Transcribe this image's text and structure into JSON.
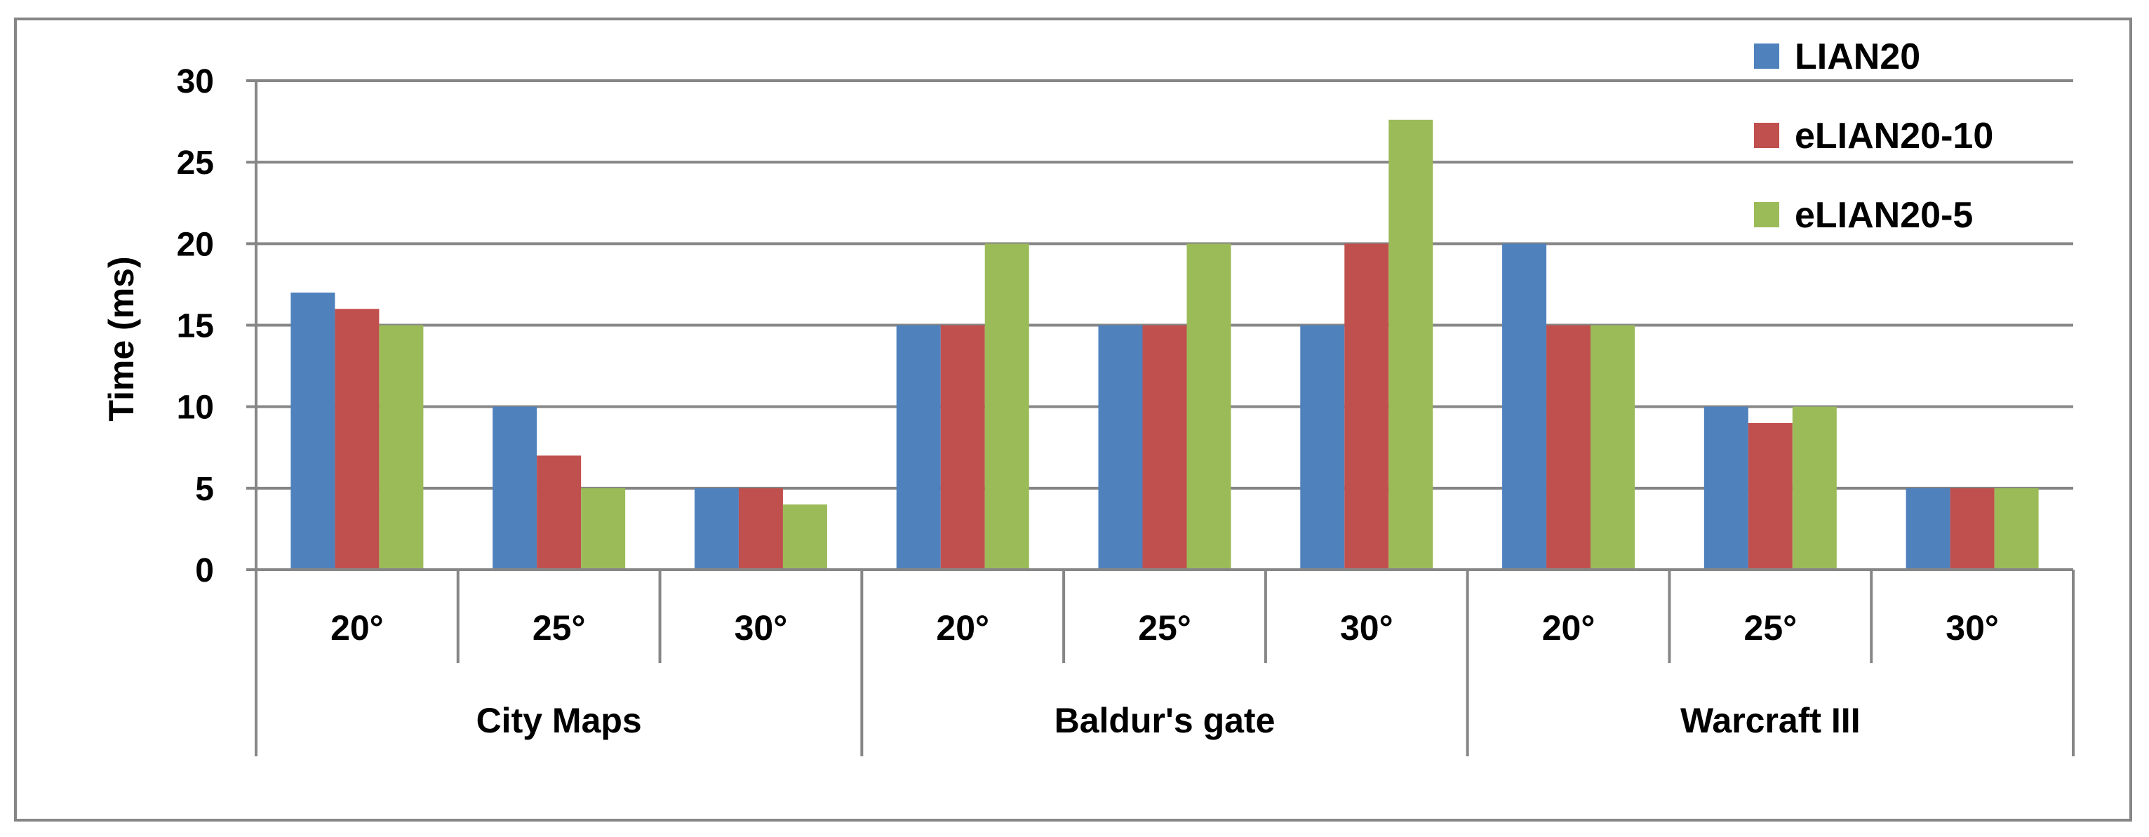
{
  "chart_data": {
    "type": "bar",
    "ylabel": "Time (ms)",
    "ylim": [
      0,
      30
    ],
    "yticks": [
      0,
      5,
      10,
      15,
      20,
      25,
      30
    ],
    "grid": true,
    "legend_position": "top-right",
    "groups": [
      {
        "name": "City Maps",
        "categories": [
          "20°",
          "25°",
          "30°"
        ]
      },
      {
        "name": "Baldur's gate",
        "categories": [
          "20°",
          "25°",
          "30°"
        ]
      },
      {
        "name": "Warcraft III",
        "categories": [
          "20°",
          "25°",
          "30°"
        ]
      }
    ],
    "series": [
      {
        "name": "LIAN20",
        "color": "#4F81BD",
        "values": [
          17,
          10,
          5,
          15,
          15,
          15,
          20,
          10,
          5
        ]
      },
      {
        "name": "eLIAN20-10",
        "color": "#C0504D",
        "values": [
          16,
          7,
          5,
          15,
          15,
          20,
          15,
          9,
          5
        ]
      },
      {
        "name": "eLIAN20-5",
        "color": "#9BBB59",
        "values": [
          15,
          5,
          4,
          20,
          20,
          27.6,
          15,
          10,
          5
        ]
      }
    ]
  }
}
